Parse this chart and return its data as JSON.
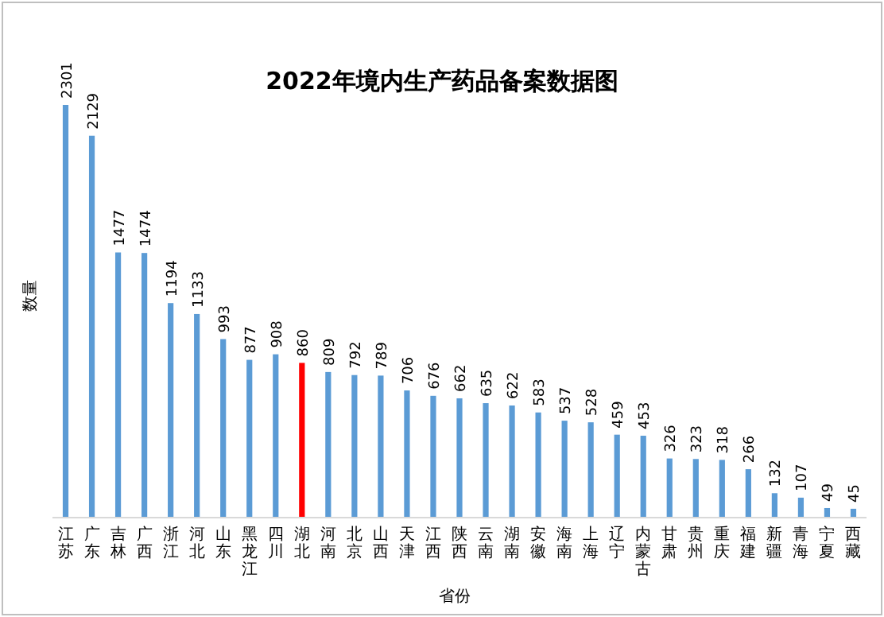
{
  "chart_data": {
    "type": "bar",
    "title": "2022年境内生产药品备案数据图",
    "xlabel": "省份",
    "ylabel": "数量",
    "categories": [
      "江苏",
      "广东",
      "吉林",
      "广西",
      "浙江",
      "河北",
      "山东",
      "黑龙江",
      "四川",
      "湖北",
      "河南",
      "北京",
      "山西",
      "天津",
      "江西",
      "陕西",
      "云南",
      "湖南",
      "安徽",
      "海南",
      "上海",
      "辽宁",
      "内蒙古",
      "甘肃",
      "贵州",
      "重庆",
      "福建",
      "新疆",
      "青海",
      "宁夏",
      "西藏"
    ],
    "values": [
      2301,
      2129,
      1477,
      1474,
      1194,
      1133,
      993,
      877,
      908,
      860,
      809,
      792,
      789,
      706,
      676,
      662,
      635,
      622,
      583,
      537,
      528,
      459,
      453,
      326,
      323,
      318,
      266,
      132,
      107,
      49,
      45
    ],
    "colors": [
      "#5b9bd5",
      "#5b9bd5",
      "#5b9bd5",
      "#5b9bd5",
      "#5b9bd5",
      "#5b9bd5",
      "#5b9bd5",
      "#5b9bd5",
      "#5b9bd5",
      "#ff0000",
      "#5b9bd5",
      "#5b9bd5",
      "#5b9bd5",
      "#5b9bd5",
      "#5b9bd5",
      "#5b9bd5",
      "#5b9bd5",
      "#5b9bd5",
      "#5b9bd5",
      "#5b9bd5",
      "#5b9bd5",
      "#5b9bd5",
      "#5b9bd5",
      "#5b9bd5",
      "#5b9bd5",
      "#5b9bd5",
      "#5b9bd5",
      "#5b9bd5",
      "#5b9bd5",
      "#5b9bd5",
      "#5b9bd5"
    ],
    "data_labels": true
  }
}
